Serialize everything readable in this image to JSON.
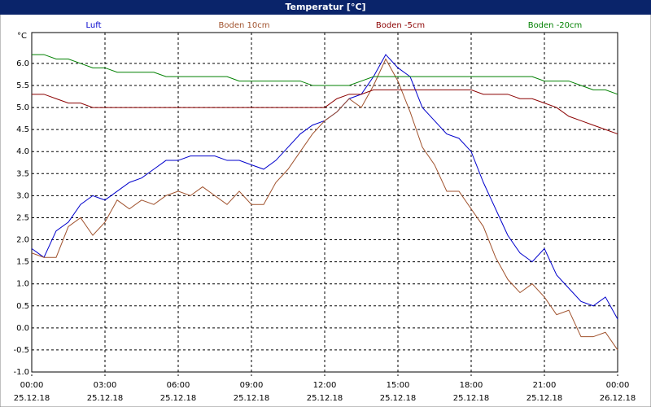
{
  "chart_data": {
    "type": "line",
    "title": "Temperatur [°C]",
    "y_unit": "°C",
    "x": [
      0,
      0.5,
      1,
      1.5,
      2,
      2.5,
      3,
      3.5,
      4,
      4.5,
      5,
      5.5,
      6,
      6.5,
      7,
      7.5,
      8,
      8.5,
      9,
      9.5,
      10,
      10.5,
      11,
      11.5,
      12,
      12.5,
      13,
      13.5,
      14,
      14.5,
      15,
      15.5,
      16,
      16.5,
      17,
      17.5,
      18,
      18.5,
      19,
      19.5,
      20,
      20.5,
      21,
      21.5,
      22,
      22.5,
      23,
      23.5,
      24
    ],
    "series": [
      {
        "name": "Luft",
        "color": "#0000cc",
        "values": [
          1.8,
          1.6,
          2.2,
          2.4,
          2.8,
          3.0,
          2.9,
          3.1,
          3.3,
          3.4,
          3.6,
          3.8,
          3.8,
          3.9,
          3.9,
          3.9,
          3.8,
          3.8,
          3.7,
          3.6,
          3.8,
          4.1,
          4.4,
          4.6,
          4.7,
          4.9,
          5.2,
          5.3,
          5.7,
          6.2,
          5.9,
          5.7,
          5.0,
          4.7,
          4.4,
          4.3,
          4.0,
          3.3,
          2.7,
          2.1,
          1.7,
          1.5,
          1.8,
          1.2,
          0.9,
          0.6,
          0.5,
          0.7,
          0.2
        ]
      },
      {
        "name": "Boden 10cm",
        "color": "#a0522d",
        "values": [
          1.7,
          1.6,
          1.6,
          2.3,
          2.5,
          2.1,
          2.4,
          2.9,
          2.7,
          2.9,
          2.8,
          3.0,
          3.1,
          3.0,
          3.2,
          3.0,
          2.8,
          3.1,
          2.8,
          2.8,
          3.3,
          3.6,
          4.0,
          4.4,
          4.7,
          4.9,
          5.2,
          5.0,
          5.5,
          6.1,
          5.6,
          4.9,
          4.1,
          3.7,
          3.1,
          3.1,
          2.7,
          2.3,
          1.6,
          1.1,
          0.8,
          1.0,
          0.7,
          0.3,
          0.4,
          -0.2,
          -0.2,
          -0.1,
          -0.5
        ]
      },
      {
        "name": "Boden -5cm",
        "color": "#8b0000",
        "values": [
          5.3,
          5.3,
          5.2,
          5.1,
          5.1,
          5.0,
          5.0,
          5.0,
          5.0,
          5.0,
          5.0,
          5.0,
          5.0,
          5.0,
          5.0,
          5.0,
          5.0,
          5.0,
          5.0,
          5.0,
          5.0,
          5.0,
          5.0,
          5.0,
          5.0,
          5.2,
          5.3,
          5.3,
          5.4,
          5.4,
          5.4,
          5.4,
          5.4,
          5.4,
          5.4,
          5.4,
          5.4,
          5.3,
          5.3,
          5.3,
          5.2,
          5.2,
          5.1,
          5.0,
          4.8,
          4.7,
          4.6,
          4.5,
          4.4
        ]
      },
      {
        "name": "Boden -20cm",
        "color": "#008000",
        "values": [
          6.2,
          6.2,
          6.1,
          6.1,
          6.0,
          5.9,
          5.9,
          5.8,
          5.8,
          5.8,
          5.8,
          5.7,
          5.7,
          5.7,
          5.7,
          5.7,
          5.7,
          5.6,
          5.6,
          5.6,
          5.6,
          5.6,
          5.6,
          5.5,
          5.5,
          5.5,
          5.5,
          5.6,
          5.7,
          5.7,
          5.7,
          5.7,
          5.7,
          5.7,
          5.7,
          5.7,
          5.7,
          5.7,
          5.7,
          5.7,
          5.7,
          5.7,
          5.6,
          5.6,
          5.6,
          5.5,
          5.4,
          5.4,
          5.3
        ]
      }
    ],
    "xlim": [
      0,
      24
    ],
    "xticks": [
      {
        "value": 0,
        "label": "00:00"
      },
      {
        "value": 3,
        "label": "03:00"
      },
      {
        "value": 6,
        "label": "06:00"
      },
      {
        "value": 9,
        "label": "09:00"
      },
      {
        "value": 12,
        "label": "12:00"
      },
      {
        "value": 15,
        "label": "15:00"
      },
      {
        "value": 18,
        "label": "18:00"
      },
      {
        "value": 21,
        "label": "21:00"
      },
      {
        "value": 24,
        "label": "00:00"
      }
    ],
    "xtick_dates": [
      "25.12.18",
      "25.12.18",
      "25.12.18",
      "25.12.18",
      "25.12.18",
      "25.12.18",
      "25.12.18",
      "25.12.18",
      "26.12.18"
    ],
    "ylim": [
      -1.0,
      6.7
    ],
    "yticks": [
      {
        "value": -1,
        "label": "-1.0"
      },
      -0.5,
      {
        "value": 0,
        "label": "0.0"
      },
      0.5,
      {
        "value": 1,
        "label": "1.0"
      },
      1.5,
      {
        "value": 2,
        "label": "2.0"
      },
      2.5,
      {
        "value": 3,
        "label": "3.0"
      },
      3.5,
      {
        "value": 4,
        "label": "4.0"
      },
      4.5,
      {
        "value": 5,
        "label": "5.0"
      },
      5.5,
      {
        "value": 6,
        "label": "6.0"
      }
    ],
    "grid": true
  }
}
